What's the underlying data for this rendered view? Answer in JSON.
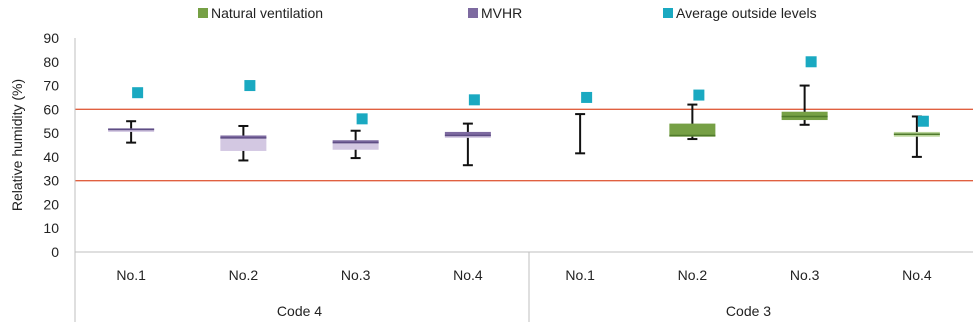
{
  "chart_data": {
    "type": "box",
    "ylabel": "Relative humidity (%)",
    "ylim": [
      0,
      90
    ],
    "yticks": [
      0,
      10,
      20,
      30,
      40,
      50,
      60,
      70,
      80,
      90
    ],
    "grid": false,
    "legend_position": "top",
    "reference_lines": [
      60,
      30
    ],
    "legend": [
      {
        "label": "Natural ventilation",
        "color": "#76a045"
      },
      {
        "label": "MVHR",
        "color": "#7d6aa0"
      },
      {
        "label": "Average outside levels",
        "color": "#1aa9c1"
      }
    ],
    "groups": [
      {
        "label": "Code 4",
        "categories": [
          "No.1",
          "No.2",
          "No.3",
          "No.4"
        ]
      },
      {
        "label": "Code 3",
        "categories": [
          "No.1",
          "No.2",
          "No.3",
          "No.4"
        ]
      }
    ],
    "items": [
      {
        "category": "No.1",
        "group": "Code 4",
        "series": "MVHR",
        "min": 46,
        "q1": 50.5,
        "median": 51.5,
        "q3": 52,
        "max": 55,
        "outside_avg": 67
      },
      {
        "category": "No.2",
        "group": "Code 4",
        "series": "MVHR",
        "min": 38.5,
        "q1": 42.5,
        "median": 48,
        "q3": 49,
        "max": 53,
        "outside_avg": 70
      },
      {
        "category": "No.3",
        "group": "Code 4",
        "series": "MVHR",
        "min": 39.5,
        "q1": 43,
        "median": 46,
        "q3": 47,
        "max": 51,
        "outside_avg": 56
      },
      {
        "category": "No.4",
        "group": "Code 4",
        "series": "MVHR",
        "min": 36.5,
        "q1": 48,
        "median": 49,
        "q3": 50.5,
        "max": 54,
        "outside_avg": 64
      },
      {
        "category": "No.1",
        "group": "Code 3",
        "series": "Natural ventilation",
        "min": 41.5,
        "q1": null,
        "median": null,
        "q3": null,
        "max": 58,
        "outside_avg": 65
      },
      {
        "category": "No.2",
        "group": "Code 3",
        "series": "Natural ventilation",
        "min": 47.5,
        "q1": 48.5,
        "median": 49,
        "q3": 54,
        "max": 62,
        "outside_avg": 66
      },
      {
        "category": "No.3",
        "group": "Code 3",
        "series": "Natural ventilation",
        "min": 53.5,
        "q1": 55.5,
        "median": 57,
        "q3": 59,
        "max": 70,
        "outside_avg": 80
      },
      {
        "category": "No.4",
        "group": "Code 3",
        "series": "Natural ventilation",
        "min": 40,
        "q1": 48.5,
        "median": 49.5,
        "q3": 50.5,
        "max": 57,
        "outside_avg": 55
      }
    ]
  }
}
